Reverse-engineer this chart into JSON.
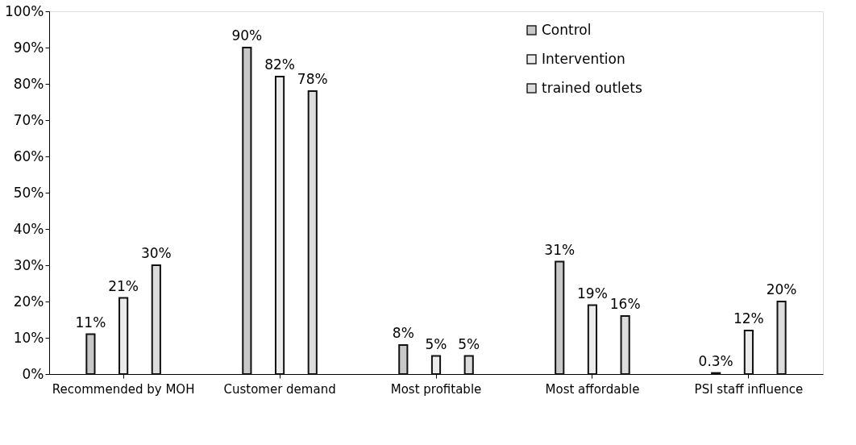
{
  "chart_data": {
    "type": "bar",
    "categories": [
      "Recommended by MOH",
      "Customer demand",
      "Most profitable",
      "Most affordable",
      "PSI staff influence"
    ],
    "series": [
      {
        "name": "Control",
        "color": "#c8c8c8",
        "values": [
          11,
          90,
          8,
          31,
          0.3
        ],
        "value_labels": [
          "11%",
          "90%",
          "8%",
          "31%",
          "0.3%"
        ]
      },
      {
        "name": "Intervention",
        "color": "#ebebeb",
        "values": [
          21,
          82,
          5,
          19,
          12
        ],
        "value_labels": [
          "21%",
          "82%",
          "5%",
          "19%",
          "12%"
        ]
      },
      {
        "name": "trained outlets",
        "color": "#dcdcdc",
        "values": [
          30,
          78,
          5,
          16,
          20
        ],
        "value_labels": [
          "30%",
          "78%",
          "5%",
          "16%",
          "20%"
        ]
      }
    ],
    "ylim": [
      0,
      100
    ],
    "yticks": [
      {
        "value": 0,
        "label": "0%"
      },
      {
        "value": 10,
        "label": "10%"
      },
      {
        "value": 20,
        "label": "20%"
      },
      {
        "value": 30,
        "label": "30%"
      },
      {
        "value": 40,
        "label": "40%"
      },
      {
        "value": 50,
        "label": "50%"
      },
      {
        "value": 60,
        "label": "60%"
      },
      {
        "value": 70,
        "label": "70%"
      },
      {
        "value": 80,
        "label": "80%"
      },
      {
        "value": 90,
        "label": "90%"
      },
      {
        "value": 100,
        "label": "100%"
      }
    ],
    "grid": false,
    "legend": "top right"
  }
}
